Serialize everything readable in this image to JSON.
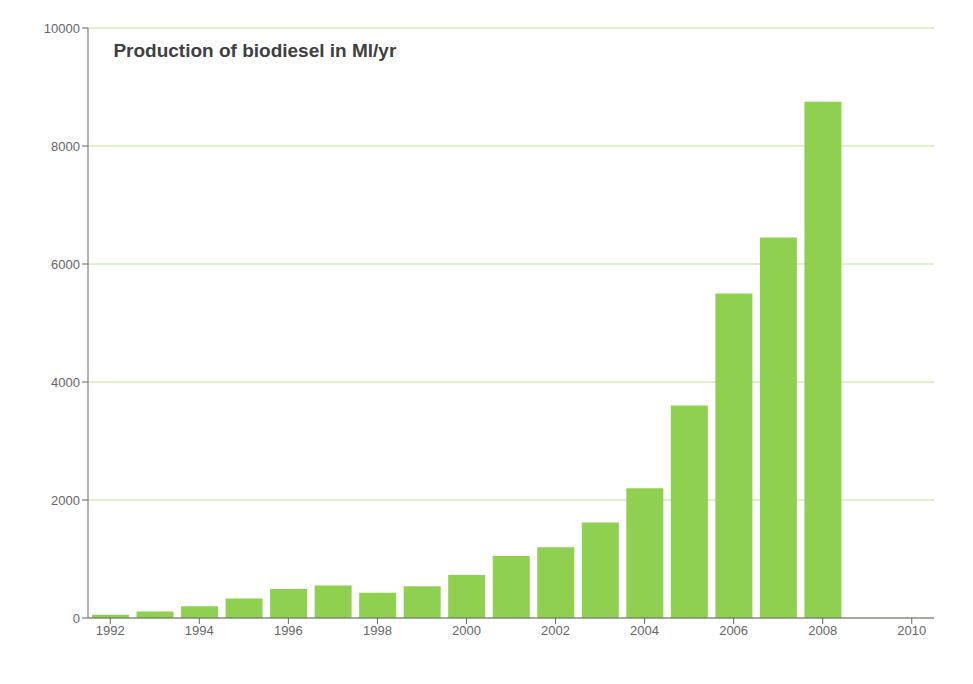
{
  "chart_data": {
    "type": "bar",
    "title": "Production of biodiesel in Ml/yr",
    "x": [
      1992,
      1993,
      1994,
      1995,
      1996,
      1997,
      1998,
      1999,
      2000,
      2001,
      2002,
      2003,
      2004,
      2005,
      2006,
      2007,
      2008
    ],
    "values": [
      55,
      110,
      200,
      330,
      490,
      550,
      430,
      540,
      730,
      1050,
      1200,
      1620,
      2200,
      3600,
      5500,
      6450,
      8750
    ],
    "color": "#90d050",
    "xlim": [
      1991.5,
      2010.5
    ],
    "ylim": [
      0,
      10000
    ],
    "xticks": [
      1992,
      1994,
      1996,
      1998,
      2000,
      2002,
      2004,
      2006,
      2008,
      2010
    ],
    "yticks": [
      0,
      2000,
      4000,
      6000,
      8000,
      10000
    ],
    "grid": true
  }
}
